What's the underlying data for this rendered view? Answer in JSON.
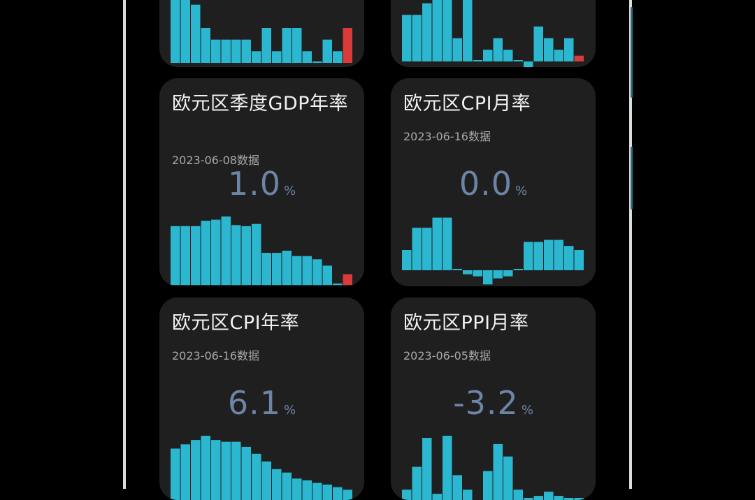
{
  "colors": {
    "bar": "#2bb7cf",
    "bar_highlight": "#d93a3a",
    "card": "#1f1f1f",
    "value": "#6c84a6"
  },
  "cards": [
    {
      "title": "",
      "date": "",
      "value": "",
      "unit": "",
      "chart_data": {
        "type": "bar",
        "values": [
          9,
          6,
          5,
          3,
          2,
          2,
          2,
          2,
          1,
          3,
          1,
          3,
          3,
          1,
          0,
          2,
          1,
          3
        ],
        "highlight_last": true
      }
    },
    {
      "title": "",
      "date": "",
      "value": "",
      "unit": "",
      "chart_data": {
        "type": "bar",
        "values": [
          4,
          4,
          5,
          6,
          7,
          2,
          9,
          0,
          1,
          2,
          1,
          0,
          -0.5,
          3,
          2,
          1,
          2,
          0.5
        ],
        "highlight_last": true
      }
    },
    {
      "title": "欧元区季度GDP年率",
      "date": "2023-06-08数据",
      "value": "1.0",
      "unit": "%",
      "chart_data": {
        "type": "bar",
        "values": [
          5.5,
          5.5,
          5.5,
          6,
          6.1,
          6.4,
          5.6,
          5.5,
          5.7,
          3.0,
          3.0,
          3.2,
          2.7,
          2.7,
          2.4,
          1.8,
          0.1,
          1.0
        ],
        "highlight_last": true
      }
    },
    {
      "title": "欧元区CPI月率",
      "date": "2023-06-16数据",
      "value": "0.0",
      "unit": "%",
      "chart_data": {
        "type": "bar",
        "values": [
          1.0,
          2.1,
          2.1,
          2.6,
          2.6,
          0,
          -0.2,
          -0.3,
          -0.7,
          -0.4,
          -0.3,
          0,
          1.4,
          1.4,
          1.5,
          1.5,
          1.2,
          1.0
        ],
        "highlight_last": false
      }
    },
    {
      "title": "欧元区CPI年率",
      "date": "2023-06-16数据",
      "value": "6.1",
      "unit": "%",
      "chart_data": {
        "type": "bar",
        "values": [
          6,
          6.5,
          7,
          7.5,
          7,
          6.8,
          6.8,
          6.2,
          5.4,
          4.5,
          3.6,
          3.2,
          2.5,
          2.3,
          2.0,
          1.8,
          1.5,
          1.2
        ],
        "highlight_last": false
      }
    },
    {
      "title": "欧元区PPI月率",
      "date": "2023-06-05数据",
      "value": "-3.2",
      "unit": "%",
      "chart_data": {
        "type": "bar",
        "values": [
          0.5,
          1.6,
          3.0,
          0.3,
          3.1,
          1.2,
          0.5,
          -0.3,
          1.4,
          2.7,
          2.1,
          0.5,
          0.1,
          0.2,
          0.4,
          0.2,
          0.1,
          0.1
        ],
        "highlight_last": false
      }
    }
  ]
}
